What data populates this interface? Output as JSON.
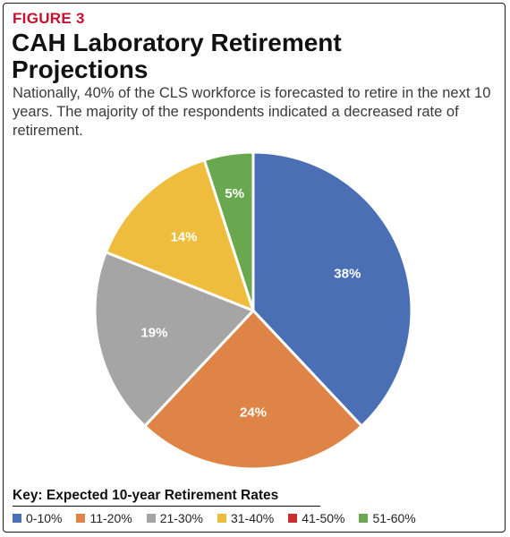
{
  "figure": {
    "label": "FIGURE 3",
    "title": "CAH Laboratory Retirement Projections",
    "subtitle": "Nationally, 40% of the CLS workforce is forecasted to retire in the next 10 years. The majority of the respondents indicated a decreased rate of retirement."
  },
  "chart_data": {
    "type": "pie",
    "title": "CAH Laboratory Retirement Projections",
    "legend_title": "Key: Expected 10-year Retirement Rates",
    "legend_position": "bottom",
    "start_angle_deg": 0,
    "direction": "clockwise",
    "slices": [
      {
        "label": "0-10%",
        "value": 38,
        "display": "38%",
        "color": "#4a6fb5"
      },
      {
        "label": "11-20%",
        "value": 24,
        "display": "24%",
        "color": "#dd8446"
      },
      {
        "label": "21-30%",
        "value": 19,
        "display": "19%",
        "color": "#a5a5a5"
      },
      {
        "label": "31-40%",
        "value": 14,
        "display": "14%",
        "color": "#efbd3e"
      },
      {
        "label": "41-50%",
        "value": 0,
        "display": "",
        "color": "#c8302e"
      },
      {
        "label": "51-60%",
        "value": 5,
        "display": "5%",
        "color": "#6aa84f"
      }
    ]
  }
}
